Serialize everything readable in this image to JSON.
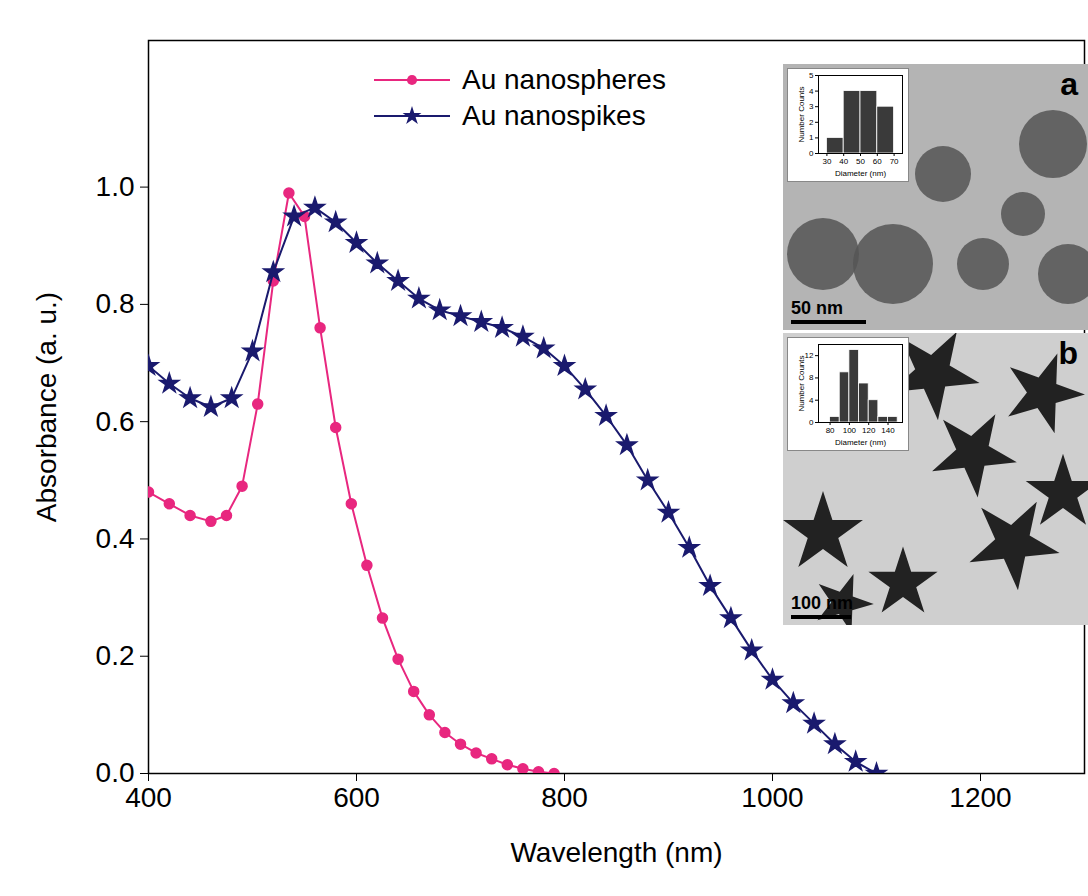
{
  "chart_data": [
    {
      "type": "line",
      "x_label": "Wavelength (nm)",
      "y_label": "Absorbance (a. u.)",
      "xlim": [
        400,
        1300
      ],
      "xticks": [
        400,
        600,
        800,
        1000,
        1200
      ],
      "ylim": [
        0,
        1.25
      ],
      "yticks": [
        {
          "value": 0,
          "label": "0.0"
        },
        {
          "value": 0.2,
          "label": "0.2"
        },
        {
          "value": 0.4,
          "label": "0.4"
        },
        {
          "value": 0.6,
          "label": "0.6"
        },
        {
          "value": 0.8,
          "label": "0.8"
        },
        {
          "value": 1.0,
          "label": "1.0"
        }
      ],
      "legend": "top",
      "series": [
        {
          "name": "Au nanospheres",
          "color": "#e8277f",
          "marker": "circle",
          "x": [
            400,
            420,
            440,
            460,
            475,
            490,
            505,
            520,
            535,
            550,
            565,
            580,
            595,
            610,
            625,
            640,
            655,
            670,
            685,
            700,
            715,
            730,
            745,
            760,
            775,
            790
          ],
          "values": [
            0.48,
            0.46,
            0.44,
            0.43,
            0.44,
            0.49,
            0.63,
            0.84,
            0.99,
            0.95,
            0.76,
            0.59,
            0.46,
            0.355,
            0.265,
            0.195,
            0.14,
            0.1,
            0.07,
            0.05,
            0.035,
            0.025,
            0.015,
            0.008,
            0.003,
            0.0
          ]
        },
        {
          "name": "Au nanospikes",
          "color": "#1a1a6e",
          "marker": "star",
          "x": [
            400,
            420,
            440,
            460,
            480,
            500,
            520,
            540,
            560,
            580,
            600,
            620,
            640,
            660,
            680,
            700,
            720,
            740,
            760,
            780,
            800,
            820,
            840,
            860,
            880,
            900,
            920,
            940,
            960,
            980,
            1000,
            1020,
            1040,
            1060,
            1080,
            1100
          ],
          "values": [
            0.695,
            0.665,
            0.64,
            0.625,
            0.64,
            0.72,
            0.855,
            0.95,
            0.965,
            0.94,
            0.905,
            0.87,
            0.84,
            0.81,
            0.79,
            0.78,
            0.77,
            0.76,
            0.745,
            0.725,
            0.695,
            0.655,
            0.61,
            0.56,
            0.5,
            0.445,
            0.385,
            0.32,
            0.265,
            0.21,
            0.16,
            0.12,
            0.085,
            0.05,
            0.02,
            0.0
          ]
        }
      ]
    },
    {
      "type": "histogram",
      "annotations": [
        "a",
        "50 nm"
      ],
      "x_label": "Diameter (nm)",
      "y_label": "Number Counts",
      "bins": [
        30,
        40,
        50,
        60,
        70
      ],
      "values": [
        1,
        4,
        4,
        3
      ],
      "color": "#3a3a3a",
      "xlim": [
        25,
        75
      ],
      "xticks": [
        30,
        40,
        50,
        60,
        70
      ],
      "ylim": [
        0,
        5
      ],
      "yticks": [
        0,
        1,
        2,
        3,
        4,
        5
      ]
    },
    {
      "type": "histogram",
      "annotations": [
        "b",
        "100 nm"
      ],
      "x_label": "Diameter (nm)",
      "y_label": "Number Counts",
      "bins": [
        80,
        90,
        100,
        110,
        120,
        130,
        140,
        150
      ],
      "values": [
        1,
        9,
        13,
        7,
        4,
        1,
        1
      ],
      "color": "#3a3a3a",
      "xlim": [
        68,
        155
      ],
      "xticks": [
        80,
        100,
        120,
        140
      ],
      "ylim": [
        0,
        14
      ],
      "yticks": [
        0,
        4,
        8,
        12
      ]
    }
  ]
}
